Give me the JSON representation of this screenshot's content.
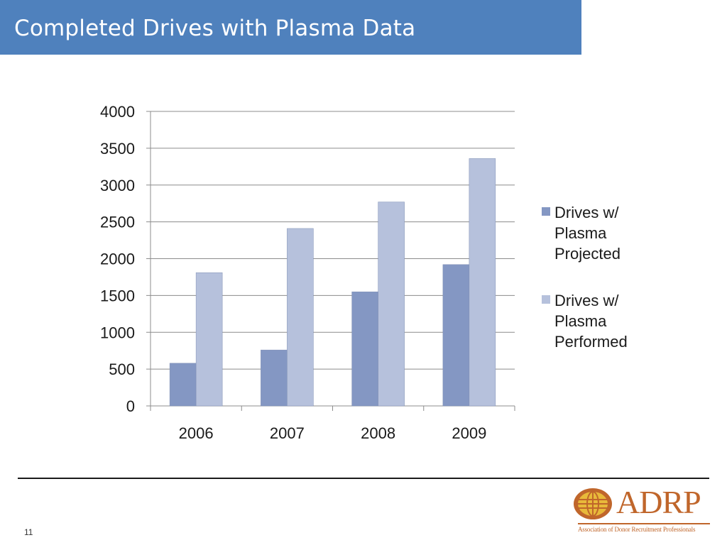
{
  "slide": {
    "title": "Completed Drives with Plasma Data",
    "page_number": "11"
  },
  "logo": {
    "wordmark": "ADRP",
    "tagline": "Association of Donor Recruitment Professionals"
  },
  "colors": {
    "title_bar": "#4f81bd",
    "series_projected": "#8497c3",
    "series_performed": "#b6c1dc",
    "logo": "#c0662b"
  },
  "chart_data": {
    "type": "bar",
    "categories": [
      "2006",
      "2007",
      "2008",
      "2009"
    ],
    "series": [
      {
        "name": "Drives w/ Plasma Projected",
        "values": [
          580,
          760,
          1550,
          1920
        ]
      },
      {
        "name": "Drives w/ Plasma Performed",
        "values": [
          1810,
          2410,
          2770,
          3360
        ]
      }
    ],
    "ylim": [
      0,
      4000
    ],
    "yticks": [
      0,
      500,
      1000,
      1500,
      2000,
      2500,
      3000,
      3500,
      4000
    ],
    "grid": true,
    "legend_position": "right",
    "legend": [
      {
        "lines": [
          "Drives w/",
          "Plasma",
          "Projected"
        ]
      },
      {
        "lines": [
          "Drives w/",
          "Plasma",
          "Performed"
        ]
      }
    ]
  }
}
